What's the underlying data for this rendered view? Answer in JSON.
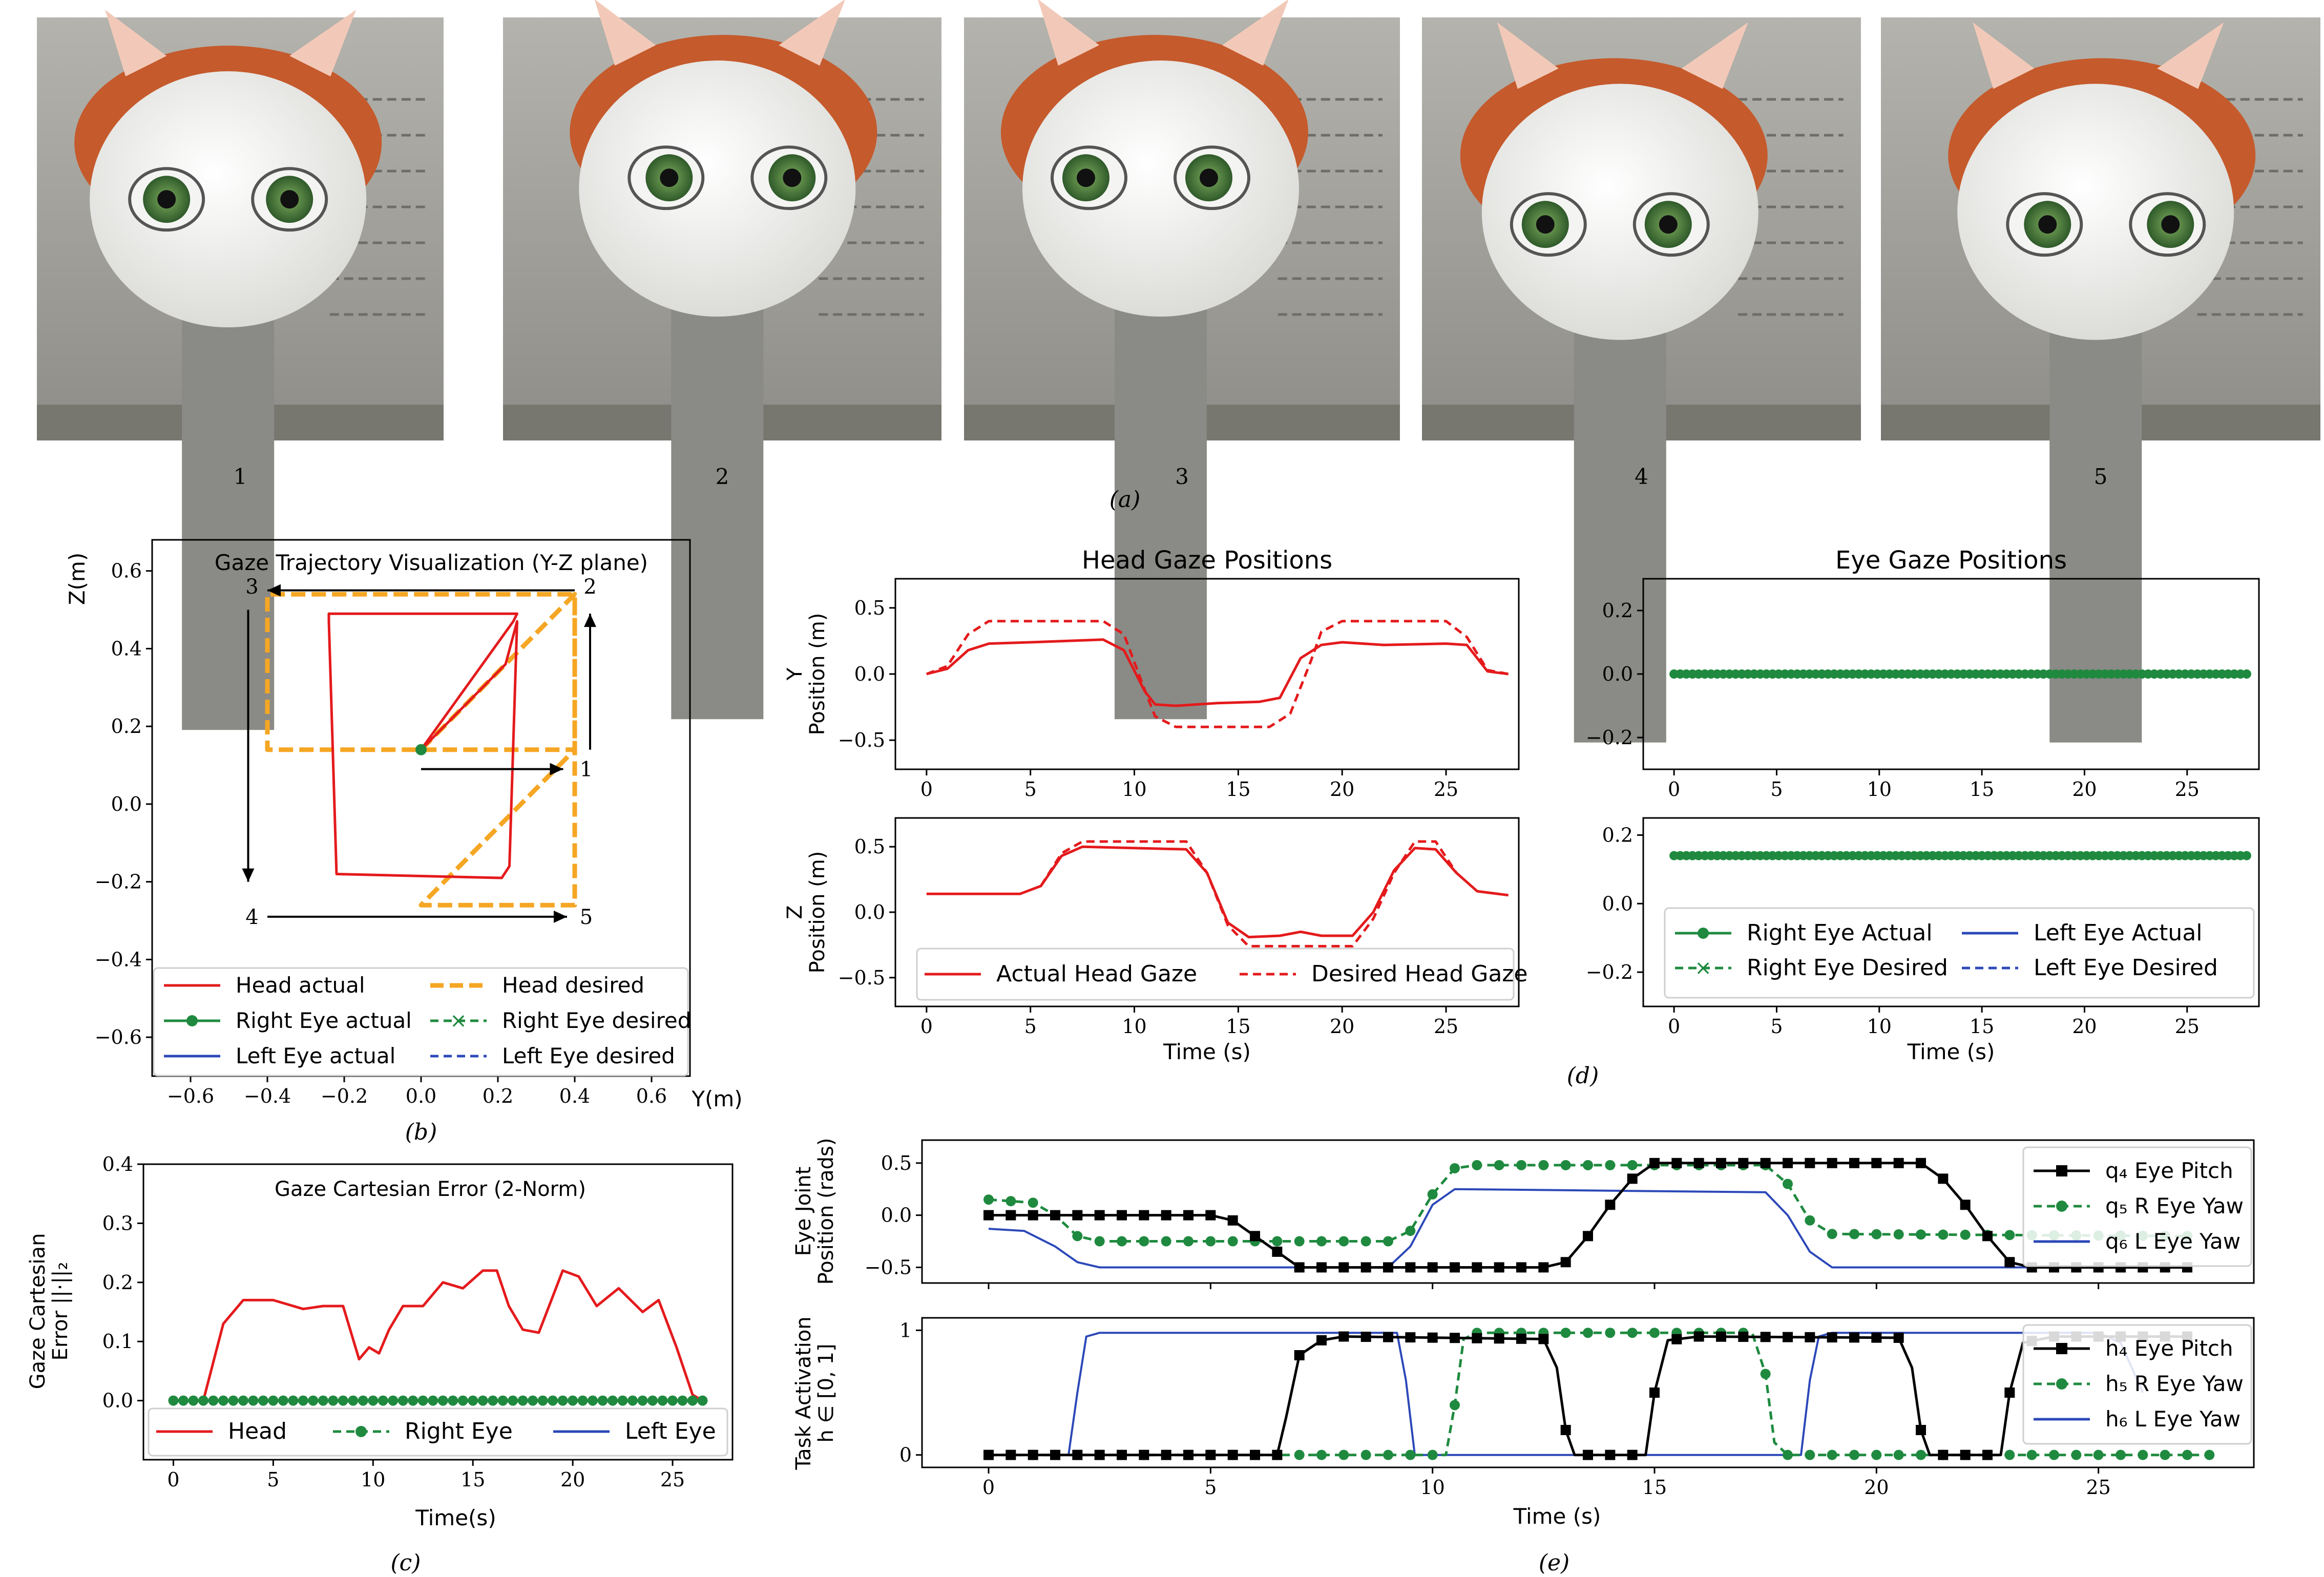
{
  "panel_labels": {
    "a": "(a)",
    "b": "(b)",
    "c": "(c)",
    "d": "(d)",
    "e": "(e)"
  },
  "photos": {
    "numbers": [
      "1",
      "2",
      "3",
      "4",
      "5"
    ],
    "gaze": [
      "neutral",
      "up-right",
      "up-left",
      "down-left",
      "down-right"
    ],
    "colors": {
      "head_shell": "#c55a2c",
      "face": "#ececea",
      "iris": "#4d7a3e",
      "board": "#a3a29c",
      "neck": "#8a8a86"
    }
  },
  "colors": {
    "head": "#e41a1c",
    "desired": "#f5a623",
    "right_eye": "#1f8a3f",
    "left_eye": "#2c48b8",
    "pitch": "#000000"
  },
  "chart_data": [
    {
      "id": "b",
      "type": "line",
      "title": "Gaze Trajectory Visualization (Y-Z plane)",
      "xlabel": "Y(m)",
      "ylabel": "Z(m)",
      "xlim": [
        -0.7,
        0.7
      ],
      "ylim": [
        -0.7,
        0.68
      ],
      "xticks": [
        -0.6,
        -0.4,
        -0.2,
        0.0,
        0.2,
        0.4,
        0.6
      ],
      "xtick_labels": [
        "−0.6",
        "−0.4",
        "−0.2",
        "0.0",
        "0.2",
        "0.4",
        "0.6"
      ],
      "yticks": [
        -0.6,
        -0.4,
        -0.2,
        0.0,
        0.2,
        0.4,
        0.6
      ],
      "ytick_labels": [
        "−0.6",
        "−0.4",
        "−0.2",
        "0.0",
        "0.2",
        "0.4",
        "0.6"
      ],
      "series": [
        {
          "name": "Head actual",
          "style": "red-solid",
          "x": [
            0.0,
            0.24,
            0.25,
            -0.24,
            -0.24,
            -0.22,
            0.21,
            0.23,
            0.25,
            0.22,
            0.0
          ],
          "y": [
            0.14,
            0.47,
            0.49,
            0.49,
            0.47,
            -0.18,
            -0.19,
            -0.16,
            0.47,
            0.36,
            0.14
          ]
        },
        {
          "name": "Head desired",
          "style": "orange-dashed",
          "x": [
            0.0,
            0.4,
            0.4,
            -0.4,
            -0.4,
            0.4,
            0.4,
            0.0,
            0.4
          ],
          "y": [
            0.14,
            0.54,
            0.14,
            0.14,
            0.54,
            0.54,
            -0.26,
            -0.26,
            0.14
          ]
        },
        {
          "name": "Right Eye actual",
          "style": "green-dot",
          "x": [
            0.0
          ],
          "y": [
            0.14
          ]
        },
        {
          "name": "Right Eye desired",
          "style": "green-dashed-x",
          "x": [
            0.0
          ],
          "y": [
            0.14
          ]
        },
        {
          "name": "Left Eye actual",
          "style": "blue-solid",
          "x": [
            0.0
          ],
          "y": [
            0.14
          ]
        },
        {
          "name": "Left Eye desired",
          "style": "blue-dashed",
          "x": [
            0.0
          ],
          "y": [
            0.14
          ]
        }
      ],
      "corner_labels": [
        "1",
        "2",
        "3",
        "4",
        "5"
      ],
      "legend": "bottom"
    },
    {
      "id": "c",
      "type": "line",
      "title": "Gaze Cartesian Error (2-Norm)",
      "xlabel": "Time(s)",
      "ylabel": [
        "Gaze Cartesian",
        "Error ||·||₂"
      ],
      "xlim": [
        -1.5,
        28
      ],
      "ylim": [
        -0.1,
        0.4
      ],
      "xticks": [
        0,
        5,
        10,
        15,
        20,
        25
      ],
      "xtick_labels": [
        "0",
        "5",
        "10",
        "15",
        "20",
        "25"
      ],
      "yticks": [
        0.0,
        0.1,
        0.2,
        0.3,
        0.4
      ],
      "ytick_labels": [
        "0.0",
        "0.1",
        "0.2",
        "0.3",
        "0.4"
      ],
      "series": [
        {
          "name": "Head",
          "style": "red-solid",
          "x": [
            0,
            1.5,
            2.5,
            3.5,
            5,
            6.5,
            7.5,
            8.5,
            9.3,
            9.8,
            10.3,
            10.8,
            11.5,
            12.5,
            13.5,
            14.5,
            15.5,
            16.2,
            16.8,
            17.5,
            18.3,
            19.5,
            20.3,
            21.2,
            22.3,
            23.5,
            24.3,
            25.2,
            26.0,
            26.5
          ],
          "y": [
            0.0,
            0.0,
            0.13,
            0.17,
            0.17,
            0.155,
            0.16,
            0.16,
            0.07,
            0.09,
            0.08,
            0.12,
            0.16,
            0.16,
            0.2,
            0.19,
            0.22,
            0.22,
            0.16,
            0.12,
            0.115,
            0.22,
            0.21,
            0.16,
            0.19,
            0.15,
            0.17,
            0.09,
            0.01,
            0.0
          ]
        },
        {
          "name": "Right Eye",
          "style": "green-dashed-dot",
          "x": [
            0,
            26.5
          ],
          "y": [
            0.0,
            0.0
          ]
        },
        {
          "name": "Left Eye",
          "style": "blue-solid",
          "x": [
            0,
            26.5
          ],
          "y": [
            0.0,
            0.0
          ]
        }
      ],
      "legend": "bottom"
    },
    {
      "id": "d-head-y",
      "type": "line",
      "title": "Head Gaze Positions",
      "xlabel": "",
      "ylabel": [
        "Y",
        "Position (m)"
      ],
      "xlim": [
        -1.5,
        28.5
      ],
      "ylim": [
        -0.72,
        0.72
      ],
      "xticks": [
        0,
        5,
        10,
        15,
        20,
        25
      ],
      "xtick_labels": [
        "0",
        "5",
        "10",
        "15",
        "20",
        "25"
      ],
      "yticks": [
        -0.5,
        0.0,
        0.5
      ],
      "ytick_labels": [
        "−0.5",
        "0.0",
        "0.5"
      ],
      "series": [
        {
          "name": "Actual Head Gaze",
          "style": "red-solid",
          "x": [
            0,
            1,
            2,
            3,
            5,
            8.5,
            9.5,
            10.5,
            11,
            12,
            14,
            16,
            17,
            18,
            19,
            20,
            22,
            25,
            26,
            27,
            28
          ],
          "y": [
            0.0,
            0.04,
            0.18,
            0.23,
            0.24,
            0.26,
            0.18,
            -0.13,
            -0.23,
            -0.24,
            -0.22,
            -0.21,
            -0.18,
            0.12,
            0.22,
            0.24,
            0.22,
            0.23,
            0.22,
            0.02,
            0.0
          ]
        },
        {
          "name": "Desired Head Gaze",
          "style": "red-dashed",
          "x": [
            0,
            1,
            2,
            3,
            8.5,
            9.5,
            10.5,
            11,
            12,
            16.5,
            17.5,
            18.5,
            19,
            20,
            25,
            26,
            27,
            28
          ],
          "y": [
            0.0,
            0.06,
            0.3,
            0.4,
            0.4,
            0.3,
            -0.12,
            -0.32,
            -0.4,
            -0.4,
            -0.3,
            0.1,
            0.32,
            0.4,
            0.4,
            0.28,
            0.03,
            0.0
          ]
        }
      ]
    },
    {
      "id": "d-head-z",
      "type": "line",
      "xlabel": "Time (s)",
      "ylabel": [
        "Z",
        "Position (m)"
      ],
      "xlim": [
        -1.5,
        28.5
      ],
      "ylim": [
        -0.72,
        0.72
      ],
      "xticks": [
        0,
        5,
        10,
        15,
        20,
        25
      ],
      "xtick_labels": [
        "0",
        "5",
        "10",
        "15",
        "20",
        "25"
      ],
      "yticks": [
        -0.5,
        0.0,
        0.5
      ],
      "ytick_labels": [
        "−0.5",
        "0.0",
        "0.5"
      ],
      "series": [
        {
          "name": "Actual Head Gaze",
          "style": "red-solid",
          "x": [
            0,
            4.5,
            5.5,
            6.5,
            7.5,
            12.5,
            13.5,
            14.5,
            15.5,
            17,
            18,
            19,
            20.5,
            21.5,
            22.5,
            23.5,
            24.5,
            25.5,
            26.5,
            28
          ],
          "y": [
            0.14,
            0.14,
            0.2,
            0.43,
            0.5,
            0.48,
            0.3,
            -0.08,
            -0.19,
            -0.18,
            -0.15,
            -0.18,
            -0.18,
            0.0,
            0.32,
            0.49,
            0.48,
            0.3,
            0.16,
            0.13
          ]
        },
        {
          "name": "Desired Head Gaze",
          "style": "red-dashed",
          "x": [
            5.5,
            6.5,
            7.5,
            12.5,
            13.5,
            14.5,
            15.5,
            20.5,
            21.5,
            22.5,
            23.5,
            24.5,
            25.5
          ],
          "y": [
            0.2,
            0.45,
            0.54,
            0.54,
            0.3,
            -0.1,
            -0.26,
            -0.26,
            -0.05,
            0.3,
            0.54,
            0.54,
            0.3
          ]
        }
      ],
      "legend": "bottom"
    },
    {
      "id": "d-eye-y",
      "type": "line",
      "title": "Eye Gaze Positions",
      "xlabel": "",
      "xlim": [
        -1.5,
        28.5
      ],
      "ylim": [
        -0.3,
        0.3
      ],
      "xticks": [
        0,
        5,
        10,
        15,
        20,
        25
      ],
      "xtick_labels": [
        "0",
        "5",
        "10",
        "15",
        "20",
        "25"
      ],
      "yticks": [
        -0.2,
        0.0,
        0.2
      ],
      "ytick_labels": [
        "−0.2",
        "0.0",
        "0.2"
      ],
      "series": [
        {
          "name": "Right Eye Actual",
          "x": [
            0,
            28
          ],
          "y": [
            0.0,
            0.0
          ]
        },
        {
          "name": "Right Eye Desired",
          "x": [
            0,
            28
          ],
          "y": [
            0.0,
            0.0
          ]
        },
        {
          "name": "Left Eye Actual",
          "x": [
            0,
            28
          ],
          "y": [
            0.0,
            0.0
          ]
        },
        {
          "name": "Left Eye Desired",
          "x": [
            0,
            28
          ],
          "y": [
            0.0,
            0.0
          ]
        }
      ]
    },
    {
      "id": "d-eye-z",
      "type": "line",
      "xlabel": "Time (s)",
      "xlim": [
        -1.5,
        28.5
      ],
      "ylim": [
        -0.3,
        0.25
      ],
      "xticks": [
        0,
        5,
        10,
        15,
        20,
        25
      ],
      "xtick_labels": [
        "0",
        "5",
        "10",
        "15",
        "20",
        "25"
      ],
      "yticks": [
        -0.2,
        0.0,
        0.2
      ],
      "ytick_labels": [
        "−0.2",
        "0.0",
        "0.2"
      ],
      "series": [
        {
          "name": "Right Eye Actual",
          "style": "green-solid-dot",
          "x": [
            0,
            28
          ],
          "y": [
            0.14,
            0.14
          ]
        },
        {
          "name": "Right Eye Desired",
          "style": "green-dashed-x",
          "x": [
            0,
            28
          ],
          "y": [
            0.14,
            0.14
          ]
        },
        {
          "name": "Left Eye Actual",
          "style": "blue-solid",
          "x": [
            0,
            28
          ],
          "y": [
            0.14,
            0.14
          ]
        },
        {
          "name": "Left Eye Desired",
          "style": "blue-dashed",
          "x": [
            0,
            28
          ],
          "y": [
            0.14,
            0.14
          ]
        }
      ],
      "legend": "bottom"
    },
    {
      "id": "e-joints",
      "type": "line",
      "xlabel": "",
      "ylabel": [
        "Eye Joint",
        "Position (rads)"
      ],
      "xlim": [
        -1.5,
        28.5
      ],
      "ylim": [
        -0.65,
        0.72
      ],
      "xticks": [
        0,
        5,
        10,
        15,
        20,
        25
      ],
      "yticks": [
        -0.5,
        0.0,
        0.5
      ],
      "ytick_labels": [
        "−0.5",
        "0.0",
        "0.5"
      ],
      "series": [
        {
          "name": "q₄ Eye Pitch",
          "style": "black-square",
          "x": [
            0,
            5,
            5.5,
            6,
            6.5,
            7,
            12.5,
            13,
            13.5,
            14,
            14.5,
            15,
            21,
            21.5,
            22,
            22.5,
            23,
            23.5,
            27
          ],
          "y": [
            0.0,
            0.0,
            -0.05,
            -0.2,
            -0.35,
            -0.5,
            -0.5,
            -0.45,
            -0.2,
            0.1,
            0.35,
            0.5,
            0.5,
            0.35,
            0.1,
            -0.2,
            -0.45,
            -0.5,
            -0.5
          ]
        },
        {
          "name": "q₅ R Eye Yaw",
          "style": "green-dashed-dot",
          "x": [
            0,
            1,
            1.5,
            2,
            2.5,
            9,
            9.5,
            10,
            10.5,
            11,
            17.5,
            18,
            18.5,
            19,
            27
          ],
          "y": [
            0.15,
            0.12,
            0.0,
            -0.2,
            -0.25,
            -0.25,
            -0.15,
            0.2,
            0.45,
            0.48,
            0.48,
            0.3,
            -0.05,
            -0.18,
            -0.2
          ]
        },
        {
          "name": "q₆ L Eye Yaw",
          "style": "blue-solid",
          "x": [
            0,
            0.8,
            1.5,
            2,
            2.5,
            9,
            9.5,
            10,
            10.5,
            17.5,
            18,
            18.5,
            19,
            27
          ],
          "y": [
            -0.13,
            -0.15,
            -0.3,
            -0.45,
            -0.5,
            -0.5,
            -0.3,
            0.1,
            0.25,
            0.22,
            0.0,
            -0.35,
            -0.5,
            -0.5
          ]
        }
      ],
      "legend": "top-right"
    },
    {
      "id": "e-activation",
      "type": "line",
      "xlabel": "Time (s)",
      "ylabel": [
        "Task Activation",
        "h ∈ [0, 1]"
      ],
      "xlim": [
        -1.5,
        28.5
      ],
      "ylim": [
        -0.1,
        1.1
      ],
      "xticks": [
        0,
        5,
        10,
        15,
        20,
        25
      ],
      "xtick_labels": [
        "0",
        "5",
        "10",
        "15",
        "20",
        "25"
      ],
      "yticks": [
        0,
        1
      ],
      "ytick_labels": [
        "0",
        "1"
      ],
      "series": [
        {
          "name": "h₄ Eye Pitch",
          "style": "black-square",
          "x": [
            0,
            6.5,
            6.7,
            7,
            7.5,
            8,
            12.5,
            12.8,
            13,
            13.2,
            14.8,
            15,
            15.3,
            16,
            20.5,
            20.8,
            21,
            21.2,
            22.8,
            23,
            23.3,
            24,
            27
          ],
          "y": [
            0,
            0,
            0.3,
            0.8,
            0.92,
            0.95,
            0.93,
            0.7,
            0.2,
            0,
            0,
            0.5,
            0.92,
            0.95,
            0.94,
            0.7,
            0.2,
            0,
            0,
            0.5,
            0.9,
            0.95,
            0.95
          ]
        },
        {
          "name": "h₅ R Eye Yaw",
          "style": "green-dashed-dot",
          "x": [
            0,
            10.3,
            10.5,
            10.7,
            11,
            17.2,
            17.5,
            17.7,
            18,
            27.5
          ],
          "y": [
            0,
            0,
            0.4,
            0.93,
            0.98,
            0.98,
            0.65,
            0.1,
            0,
            0
          ]
        },
        {
          "name": "h₆ L Eye Yaw",
          "style": "blue-solid",
          "x": [
            0,
            1.8,
            2.0,
            2.2,
            2.5,
            9.2,
            9.4,
            9.6,
            18.3,
            18.5,
            18.7,
            19.0,
            25.0,
            25.5,
            26.0
          ],
          "y": [
            0,
            0,
            0.5,
            0.95,
            0.98,
            0.98,
            0.6,
            0,
            0,
            0.6,
            0.95,
            0.98,
            0.98,
            0.9,
            0.5
          ]
        }
      ],
      "legend": "right"
    }
  ]
}
